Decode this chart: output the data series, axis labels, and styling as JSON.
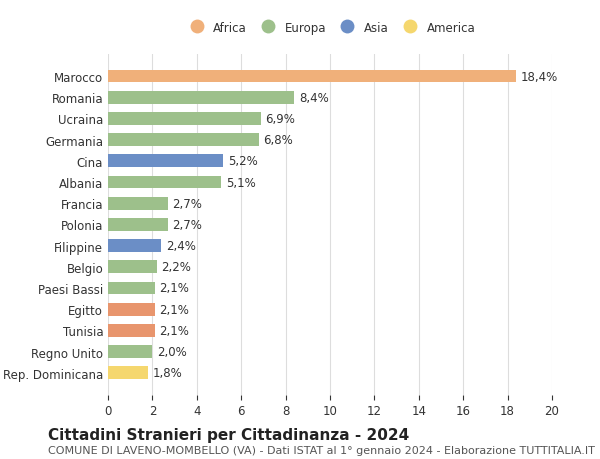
{
  "categories": [
    "Rep. Dominicana",
    "Regno Unito",
    "Tunisia",
    "Egitto",
    "Paesi Bassi",
    "Belgio",
    "Filippine",
    "Polonia",
    "Francia",
    "Albania",
    "Cina",
    "Germania",
    "Ucraina",
    "Romania",
    "Marocco"
  ],
  "values": [
    1.8,
    2.0,
    2.1,
    2.1,
    2.1,
    2.2,
    2.4,
    2.7,
    2.7,
    5.1,
    5.2,
    6.8,
    6.9,
    8.4,
    18.4
  ],
  "colors": [
    "#F5D76E",
    "#9DC08B",
    "#E8956D",
    "#E8956D",
    "#9DC08B",
    "#9DC08B",
    "#6B8EC6",
    "#9DC08B",
    "#9DC08B",
    "#9DC08B",
    "#6B8EC6",
    "#9DC08B",
    "#9DC08B",
    "#9DC08B",
    "#F0B07A"
  ],
  "labels": [
    "1,8%",
    "2,0%",
    "2,1%",
    "2,1%",
    "2,1%",
    "2,2%",
    "2,4%",
    "2,7%",
    "2,7%",
    "5,1%",
    "5,2%",
    "6,8%",
    "6,9%",
    "8,4%",
    "18,4%"
  ],
  "legend_names": [
    "Africa",
    "Europa",
    "Asia",
    "America"
  ],
  "legend_colors": [
    "#F0B07A",
    "#9DC08B",
    "#6B8EC6",
    "#F5D76E"
  ],
  "xlim": [
    0,
    20
  ],
  "xticks": [
    0,
    2,
    4,
    6,
    8,
    10,
    12,
    14,
    16,
    18,
    20
  ],
  "title": "Cittadini Stranieri per Cittadinanza - 2024",
  "subtitle": "COMUNE DI LAVENO-MOMBELLO (VA) - Dati ISTAT al 1° gennaio 2024 - Elaborazione TUTTITALIA.IT",
  "bar_height": 0.6,
  "background_color": "#ffffff",
  "grid_color": "#dddddd",
  "label_fontsize": 8.5,
  "title_fontsize": 11,
  "subtitle_fontsize": 8
}
